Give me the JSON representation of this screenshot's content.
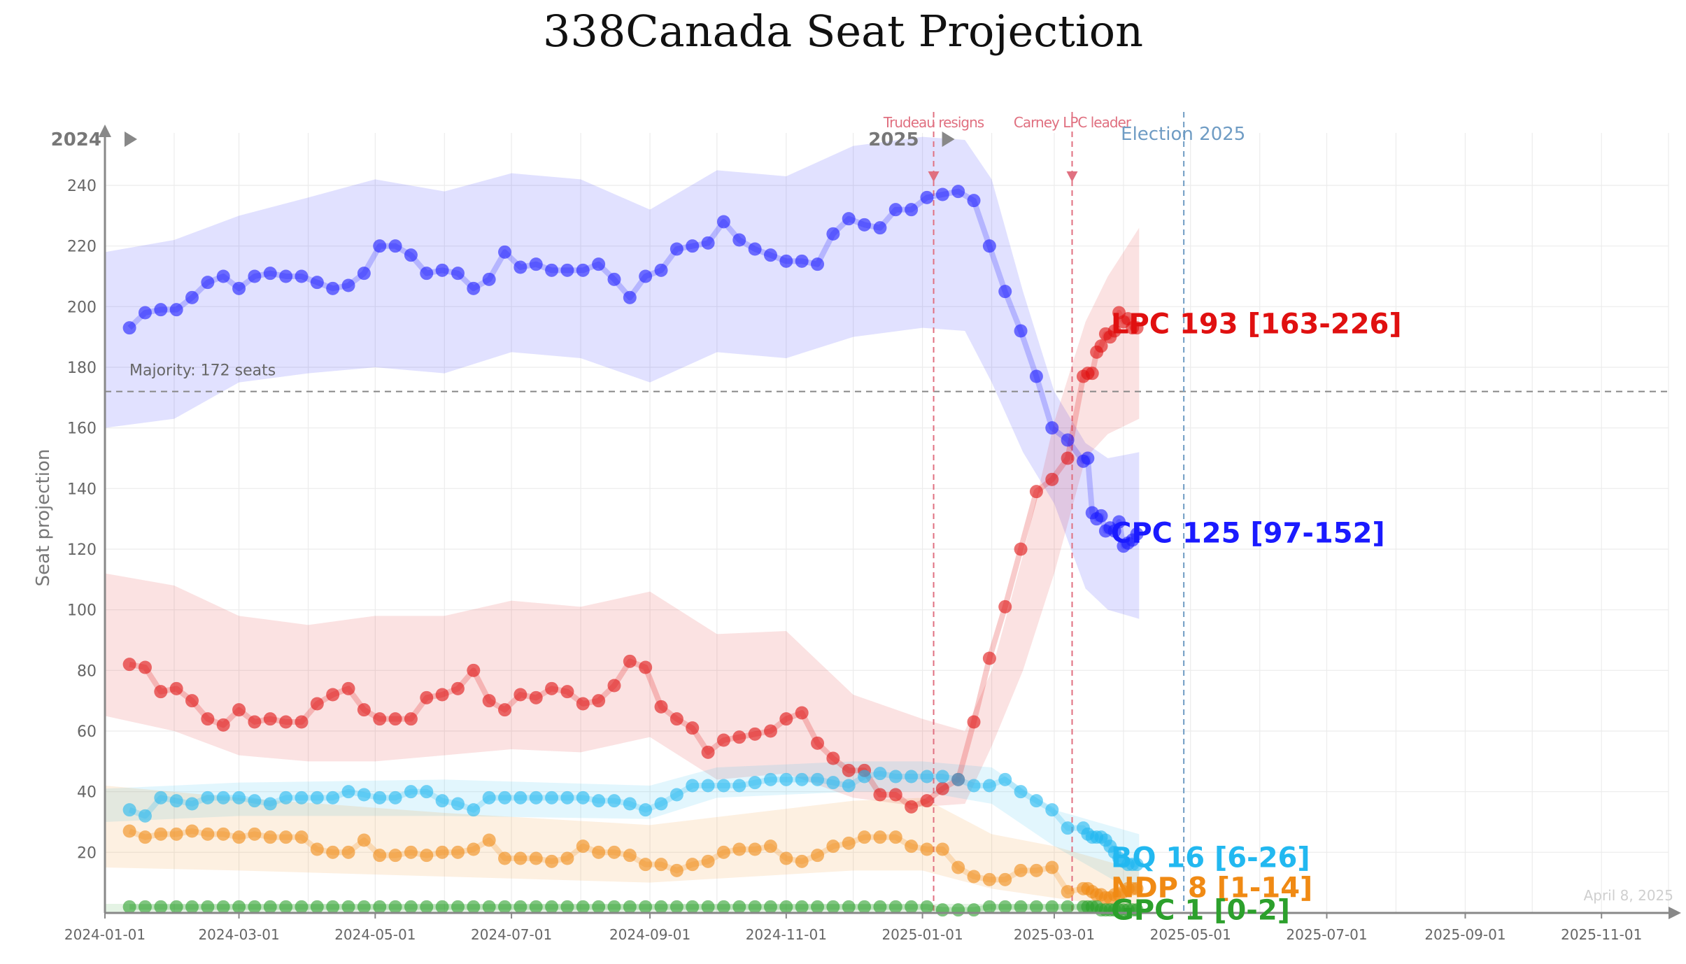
{
  "chart_data": {
    "type": "line",
    "title": "338Canada Seat Projection",
    "ylabel": "Seat projection",
    "xlabel": "",
    "ylim": [
      0,
      255
    ],
    "xlim": [
      "2024-01-01",
      "2025-12-01"
    ],
    "yticks": [
      20,
      40,
      60,
      80,
      100,
      120,
      140,
      160,
      180,
      200,
      220,
      240
    ],
    "xticks": [
      "2024-01-01",
      "2024-03-01",
      "2024-05-01",
      "2024-07-01",
      "2024-09-01",
      "2024-11-01",
      "2025-01-01",
      "2025-03-01",
      "2025-05-01",
      "2025-07-01",
      "2025-09-01",
      "2025-11-01"
    ],
    "grid": true,
    "majority": {
      "value": 172,
      "label": "Majority: 172 seats"
    },
    "year_markers": [
      {
        "date": "2024-01-01",
        "label": "2024"
      },
      {
        "date": "2025-01-01",
        "label": "2025"
      }
    ],
    "events": [
      {
        "date": "2025-01-06",
        "label": "Trudeau resigns",
        "color": "#e07080"
      },
      {
        "date": "2025-03-09",
        "label": "Carney LPC leader",
        "color": "#e07080"
      },
      {
        "date": "2025-04-28",
        "label": "Election 2025",
        "color": "#6f9cc4"
      }
    ],
    "date_stamp": "April 8, 2025",
    "series": [
      {
        "name": "CPC",
        "color": "#1a1aff",
        "label": "CPC 125 [97-152]",
        "x": [
          "2024-01-12",
          "2024-01-19",
          "2024-01-26",
          "2024-02-02",
          "2024-02-09",
          "2024-02-16",
          "2024-02-23",
          "2024-03-01",
          "2024-03-08",
          "2024-03-15",
          "2024-03-22",
          "2024-03-29",
          "2024-04-05",
          "2024-04-12",
          "2024-04-19",
          "2024-04-26",
          "2024-05-03",
          "2024-05-10",
          "2024-05-17",
          "2024-05-24",
          "2024-05-31",
          "2024-06-07",
          "2024-06-14",
          "2024-06-21",
          "2024-06-28",
          "2024-07-05",
          "2024-07-12",
          "2024-07-19",
          "2024-07-26",
          "2024-08-02",
          "2024-08-09",
          "2024-08-16",
          "2024-08-23",
          "2024-08-30",
          "2024-09-06",
          "2024-09-13",
          "2024-09-20",
          "2024-09-27",
          "2024-10-04",
          "2024-10-11",
          "2024-10-18",
          "2024-10-25",
          "2024-11-01",
          "2024-11-08",
          "2024-11-15",
          "2024-11-22",
          "2024-11-29",
          "2024-12-06",
          "2024-12-13",
          "2024-12-20",
          "2024-12-27",
          "2025-01-03",
          "2025-01-10",
          "2025-01-17",
          "2025-01-24",
          "2025-01-31",
          "2025-02-07",
          "2025-02-14",
          "2025-02-21",
          "2025-02-28",
          "2025-03-07",
          "2025-03-14",
          "2025-03-16",
          "2025-03-18",
          "2025-03-20",
          "2025-03-22",
          "2025-03-24",
          "2025-03-26",
          "2025-03-28",
          "2025-03-30",
          "2025-04-01",
          "2025-04-03",
          "2025-04-05",
          "2025-04-07"
        ],
        "y": [
          193,
          198,
          199,
          199,
          203,
          208,
          210,
          206,
          210,
          211,
          210,
          210,
          208,
          206,
          207,
          211,
          220,
          220,
          217,
          211,
          212,
          211,
          206,
          209,
          218,
          213,
          214,
          212,
          212,
          212,
          214,
          209,
          203,
          210,
          212,
          219,
          220,
          221,
          228,
          222,
          219,
          217,
          215,
          215,
          214,
          224,
          229,
          227,
          226,
          232,
          232,
          236,
          237,
          238,
          235,
          220,
          205,
          192,
          177,
          160,
          156,
          149,
          150,
          132,
          130,
          131,
          126,
          127,
          126,
          129,
          121,
          122,
          123,
          125
        ],
        "band_x": [
          "2024-01-01",
          "2024-02-01",
          "2024-03-01",
          "2024-04-01",
          "2024-05-01",
          "2024-06-01",
          "2024-07-01",
          "2024-08-01",
          "2024-09-01",
          "2024-10-01",
          "2024-11-01",
          "2024-12-01",
          "2025-01-01",
          "2025-01-20",
          "2025-02-01",
          "2025-02-15",
          "2025-03-01",
          "2025-03-15",
          "2025-03-25",
          "2025-04-08"
        ],
        "band_low": [
          160,
          163,
          175,
          178,
          180,
          178,
          185,
          183,
          175,
          185,
          183,
          190,
          193,
          192,
          175,
          152,
          135,
          107,
          100,
          97
        ],
        "band_high": [
          218,
          222,
          230,
          236,
          242,
          238,
          244,
          242,
          232,
          245,
          243,
          253,
          256,
          255,
          242,
          205,
          172,
          155,
          150,
          152
        ]
      },
      {
        "name": "LPC",
        "color": "#e01010",
        "label": "LPC 193 [163-226]",
        "x": [
          "2024-01-12",
          "2024-01-19",
          "2024-01-26",
          "2024-02-02",
          "2024-02-09",
          "2024-02-16",
          "2024-02-23",
          "2024-03-01",
          "2024-03-08",
          "2024-03-15",
          "2024-03-22",
          "2024-03-29",
          "2024-04-05",
          "2024-04-12",
          "2024-04-19",
          "2024-04-26",
          "2024-05-03",
          "2024-05-10",
          "2024-05-17",
          "2024-05-24",
          "2024-05-31",
          "2024-06-07",
          "2024-06-14",
          "2024-06-21",
          "2024-06-28",
          "2024-07-05",
          "2024-07-12",
          "2024-07-19",
          "2024-07-26",
          "2024-08-02",
          "2024-08-09",
          "2024-08-16",
          "2024-08-23",
          "2024-08-30",
          "2024-09-06",
          "2024-09-13",
          "2024-09-20",
          "2024-09-27",
          "2024-10-04",
          "2024-10-11",
          "2024-10-18",
          "2024-10-25",
          "2024-11-01",
          "2024-11-08",
          "2024-11-15",
          "2024-11-22",
          "2024-11-29",
          "2024-12-06",
          "2024-12-13",
          "2024-12-20",
          "2024-12-27",
          "2025-01-03",
          "2025-01-10",
          "2025-01-17",
          "2025-01-24",
          "2025-01-31",
          "2025-02-07",
          "2025-02-14",
          "2025-02-21",
          "2025-02-28",
          "2025-03-07",
          "2025-03-14",
          "2025-03-16",
          "2025-03-18",
          "2025-03-20",
          "2025-03-22",
          "2025-03-24",
          "2025-03-26",
          "2025-03-28",
          "2025-03-30",
          "2025-04-01",
          "2025-04-03",
          "2025-04-05",
          "2025-04-07"
        ],
        "y": [
          82,
          81,
          73,
          74,
          70,
          64,
          62,
          67,
          63,
          64,
          63,
          63,
          69,
          72,
          74,
          67,
          64,
          64,
          64,
          71,
          72,
          74,
          80,
          70,
          67,
          72,
          71,
          74,
          73,
          69,
          70,
          75,
          83,
          81,
          68,
          64,
          61,
          53,
          57,
          58,
          59,
          60,
          64,
          66,
          56,
          51,
          47,
          47,
          39,
          39,
          35,
          37,
          41,
          44,
          63,
          84,
          101,
          120,
          139,
          143,
          150,
          177,
          178,
          178,
          185,
          187,
          191,
          190,
          192,
          198,
          195,
          196,
          193,
          193
        ],
        "band_x": [
          "2024-01-01",
          "2024-02-01",
          "2024-03-01",
          "2024-04-01",
          "2024-05-01",
          "2024-06-01",
          "2024-07-01",
          "2024-08-01",
          "2024-09-01",
          "2024-10-01",
          "2024-11-01",
          "2024-12-01",
          "2025-01-01",
          "2025-01-20",
          "2025-02-01",
          "2025-02-15",
          "2025-03-01",
          "2025-03-15",
          "2025-03-25",
          "2025-04-08"
        ],
        "band_low": [
          65,
          60,
          52,
          50,
          50,
          52,
          54,
          53,
          58,
          44,
          46,
          38,
          35,
          36,
          55,
          80,
          112,
          150,
          158,
          163
        ],
        "band_high": [
          112,
          108,
          98,
          95,
          98,
          98,
          103,
          101,
          106,
          92,
          93,
          72,
          64,
          60,
          80,
          118,
          162,
          195,
          210,
          226
        ]
      },
      {
        "name": "BQ",
        "color": "#22b8f0",
        "label": "BQ 16 [6-26]",
        "x": [
          "2024-01-12",
          "2024-01-19",
          "2024-01-26",
          "2024-02-02",
          "2024-02-09",
          "2024-02-16",
          "2024-02-23",
          "2024-03-01",
          "2024-03-08",
          "2024-03-15",
          "2024-03-22",
          "2024-03-29",
          "2024-04-05",
          "2024-04-12",
          "2024-04-19",
          "2024-04-26",
          "2024-05-03",
          "2024-05-10",
          "2024-05-17",
          "2024-05-24",
          "2024-05-31",
          "2024-06-07",
          "2024-06-14",
          "2024-06-21",
          "2024-06-28",
          "2024-07-05",
          "2024-07-12",
          "2024-07-19",
          "2024-07-26",
          "2024-08-02",
          "2024-08-09",
          "2024-08-16",
          "2024-08-23",
          "2024-08-30",
          "2024-09-06",
          "2024-09-13",
          "2024-09-20",
          "2024-09-27",
          "2024-10-04",
          "2024-10-11",
          "2024-10-18",
          "2024-10-25",
          "2024-11-01",
          "2024-11-08",
          "2024-11-15",
          "2024-11-22",
          "2024-11-29",
          "2024-12-06",
          "2024-12-13",
          "2024-12-20",
          "2024-12-27",
          "2025-01-03",
          "2025-01-10",
          "2025-01-17",
          "2025-01-24",
          "2025-01-31",
          "2025-02-07",
          "2025-02-14",
          "2025-02-21",
          "2025-02-28",
          "2025-03-07",
          "2025-03-14",
          "2025-03-16",
          "2025-03-18",
          "2025-03-20",
          "2025-03-22",
          "2025-03-24",
          "2025-03-26",
          "2025-03-28",
          "2025-03-30",
          "2025-04-01",
          "2025-04-03",
          "2025-04-05",
          "2025-04-07"
        ],
        "y": [
          34,
          32,
          38,
          37,
          36,
          38,
          38,
          38,
          37,
          36,
          38,
          38,
          38,
          38,
          40,
          39,
          38,
          38,
          40,
          40,
          37,
          36,
          34,
          38,
          38,
          38,
          38,
          38,
          38,
          38,
          37,
          37,
          36,
          34,
          36,
          39,
          42,
          42,
          42,
          42,
          43,
          44,
          44,
          44,
          44,
          43,
          42,
          45,
          46,
          45,
          45,
          45,
          45,
          44,
          42,
          42,
          44,
          40,
          37,
          34,
          28,
          28,
          26,
          25,
          25,
          25,
          24,
          22,
          20,
          18,
          17,
          16,
          16,
          16
        ],
        "band_x": [
          "2024-01-01",
          "2024-03-01",
          "2024-06-01",
          "2024-09-01",
          "2024-10-01",
          "2024-12-01",
          "2025-01-01",
          "2025-02-01",
          "2025-03-01",
          "2025-04-08"
        ],
        "band_low": [
          30,
          32,
          32,
          31,
          38,
          40,
          40,
          36,
          22,
          6
        ],
        "band_high": [
          41,
          43,
          44,
          42,
          48,
          50,
          50,
          48,
          34,
          26
        ]
      },
      {
        "name": "NDP",
        "color": "#f08a14",
        "label": "NDP 8 [1-14]",
        "x": [
          "2024-01-12",
          "2024-01-19",
          "2024-01-26",
          "2024-02-02",
          "2024-02-09",
          "2024-02-16",
          "2024-02-23",
          "2024-03-01",
          "2024-03-08",
          "2024-03-15",
          "2024-03-22",
          "2024-03-29",
          "2024-04-05",
          "2024-04-12",
          "2024-04-19",
          "2024-04-26",
          "2024-05-03",
          "2024-05-10",
          "2024-05-17",
          "2024-05-24",
          "2024-05-31",
          "2024-06-07",
          "2024-06-14",
          "2024-06-21",
          "2024-06-28",
          "2024-07-05",
          "2024-07-12",
          "2024-07-19",
          "2024-07-26",
          "2024-08-02",
          "2024-08-09",
          "2024-08-16",
          "2024-08-23",
          "2024-08-30",
          "2024-09-06",
          "2024-09-13",
          "2024-09-20",
          "2024-09-27",
          "2024-10-04",
          "2024-10-11",
          "2024-10-18",
          "2024-10-25",
          "2024-11-01",
          "2024-11-08",
          "2024-11-15",
          "2024-11-22",
          "2024-11-29",
          "2024-12-06",
          "2024-12-13",
          "2024-12-20",
          "2024-12-27",
          "2025-01-03",
          "2025-01-10",
          "2025-01-17",
          "2025-01-24",
          "2025-01-31",
          "2025-02-07",
          "2025-02-14",
          "2025-02-21",
          "2025-02-28",
          "2025-03-07",
          "2025-03-14",
          "2025-03-16",
          "2025-03-18",
          "2025-03-20",
          "2025-03-22",
          "2025-03-24",
          "2025-03-26",
          "2025-03-28",
          "2025-03-30",
          "2025-04-01",
          "2025-04-03",
          "2025-04-05",
          "2025-04-07"
        ],
        "y": [
          27,
          25,
          26,
          26,
          27,
          26,
          26,
          25,
          26,
          25,
          25,
          25,
          21,
          20,
          20,
          24,
          19,
          19,
          20,
          19,
          20,
          20,
          21,
          24,
          18,
          18,
          18,
          17,
          18,
          22,
          20,
          20,
          19,
          16,
          16,
          14,
          16,
          17,
          20,
          21,
          21,
          22,
          18,
          17,
          19,
          22,
          23,
          25,
          25,
          25,
          22,
          21,
          21,
          15,
          12,
          11,
          11,
          14,
          14,
          15,
          7,
          8,
          8,
          7,
          6,
          6,
          5,
          5,
          6,
          6,
          7,
          8,
          8,
          8
        ],
        "band_x": [
          "2024-01-01",
          "2024-03-01",
          "2024-06-01",
          "2024-09-01",
          "2024-12-01",
          "2025-01-01",
          "2025-02-01",
          "2025-03-01",
          "2025-04-08"
        ],
        "band_low": [
          15,
          14,
          12,
          10,
          14,
          14,
          8,
          5,
          1
        ],
        "band_high": [
          42,
          38,
          33,
          29,
          37,
          38,
          26,
          22,
          14
        ]
      },
      {
        "name": "GPC",
        "color": "#2ca02c",
        "label": "GPC 1 [0-2]",
        "x": [
          "2024-01-12",
          "2024-01-19",
          "2024-01-26",
          "2024-02-02",
          "2024-02-09",
          "2024-02-16",
          "2024-02-23",
          "2024-03-01",
          "2024-03-08",
          "2024-03-15",
          "2024-03-22",
          "2024-03-29",
          "2024-04-05",
          "2024-04-12",
          "2024-04-19",
          "2024-04-26",
          "2024-05-03",
          "2024-05-10",
          "2024-05-17",
          "2024-05-24",
          "2024-05-31",
          "2024-06-07",
          "2024-06-14",
          "2024-06-21",
          "2024-06-28",
          "2024-07-05",
          "2024-07-12",
          "2024-07-19",
          "2024-07-26",
          "2024-08-02",
          "2024-08-09",
          "2024-08-16",
          "2024-08-23",
          "2024-08-30",
          "2024-09-06",
          "2024-09-13",
          "2024-09-20",
          "2024-09-27",
          "2024-10-04",
          "2024-10-11",
          "2024-10-18",
          "2024-10-25",
          "2024-11-01",
          "2024-11-08",
          "2024-11-15",
          "2024-11-22",
          "2024-11-29",
          "2024-12-06",
          "2024-12-13",
          "2024-12-20",
          "2024-12-27",
          "2025-01-03",
          "2025-01-10",
          "2025-01-17",
          "2025-01-24",
          "2025-01-31",
          "2025-02-07",
          "2025-02-14",
          "2025-02-21",
          "2025-02-28",
          "2025-03-07",
          "2025-03-14",
          "2025-03-16",
          "2025-03-18",
          "2025-03-20",
          "2025-03-22",
          "2025-03-24",
          "2025-03-26",
          "2025-03-28",
          "2025-03-30",
          "2025-04-01",
          "2025-04-03",
          "2025-04-05",
          "2025-04-07"
        ],
        "y": [
          2,
          2,
          2,
          2,
          2,
          2,
          2,
          2,
          2,
          2,
          2,
          2,
          2,
          2,
          2,
          2,
          2,
          2,
          2,
          2,
          2,
          2,
          2,
          2,
          2,
          2,
          2,
          2,
          2,
          2,
          2,
          2,
          2,
          2,
          2,
          2,
          2,
          2,
          2,
          2,
          2,
          2,
          2,
          2,
          2,
          2,
          2,
          2,
          2,
          2,
          2,
          2,
          1,
          1,
          1,
          2,
          2,
          2,
          2,
          2,
          2,
          2,
          2,
          2,
          2,
          1,
          1,
          1,
          1,
          1,
          1,
          1,
          1,
          1
        ],
        "band_x": [
          "2024-01-01",
          "2025-04-08"
        ],
        "band_low": [
          0,
          0
        ],
        "band_high": [
          3,
          3
        ]
      }
    ]
  }
}
